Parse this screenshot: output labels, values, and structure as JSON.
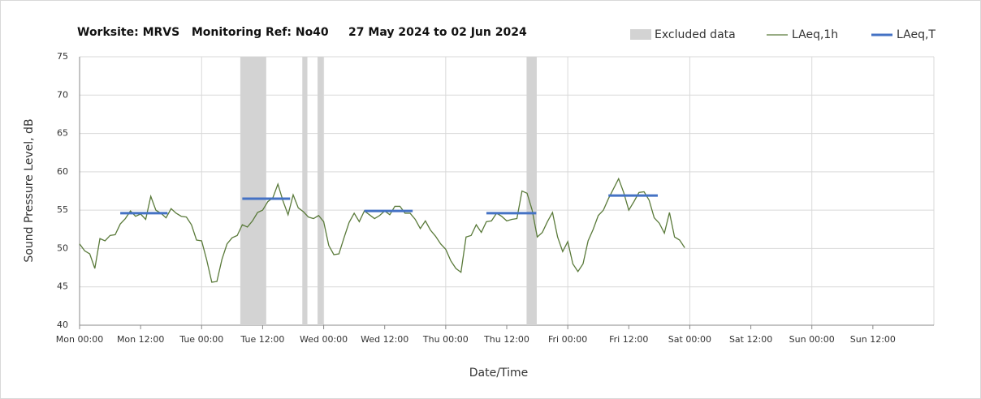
{
  "chart_data": {
    "type": "line",
    "title": "Worksite: MRVS   Monitoring Ref: No40     27 May 2024 to 02 Jun 2024",
    "xlabel": "Date/Time",
    "ylabel": "Sound Pressure Level, dB",
    "xlim": [
      0,
      168
    ],
    "xticks": [
      {
        "value": 0,
        "label": "Mon 00:00"
      },
      {
        "value": 12,
        "label": "Mon 12:00"
      },
      {
        "value": 24,
        "label": "Tue 00:00"
      },
      {
        "value": 36,
        "label": "Tue 12:00"
      },
      {
        "value": 48,
        "label": "Wed 00:00"
      },
      {
        "value": 60,
        "label": "Wed 12:00"
      },
      {
        "value": 72,
        "label": "Thu 00:00"
      },
      {
        "value": 84,
        "label": "Thu 12:00"
      },
      {
        "value": 96,
        "label": "Fri 00:00"
      },
      {
        "value": 108,
        "label": "Fri 12:00"
      },
      {
        "value": 120,
        "label": "Sat 00:00"
      },
      {
        "value": 132,
        "label": "Sat 12:00"
      },
      {
        "value": 144,
        "label": "Sun 00:00"
      },
      {
        "value": 156,
        "label": "Sun 12:00"
      }
    ],
    "ylim": [
      40,
      75
    ],
    "yticks": [
      40,
      45,
      50,
      55,
      60,
      65,
      70,
      75
    ],
    "grid": true,
    "legend": "top-right",
    "excluded": {
      "name": "Excluded data",
      "color": "#d3d3d3",
      "starts": [
        31.6,
        43.8,
        46.8,
        87.9
      ],
      "ends": [
        36.7,
        44.8,
        47.9,
        89.9
      ]
    },
    "x": [
      0,
      1,
      2,
      3,
      4,
      5,
      6,
      7,
      8,
      9,
      10,
      11,
      12,
      13,
      14,
      15,
      16,
      17,
      18,
      19,
      20,
      21,
      22,
      23,
      24,
      25,
      26,
      27,
      28,
      29,
      30,
      31,
      32,
      33,
      34,
      35,
      36,
      37,
      38,
      39,
      40,
      41,
      42,
      43,
      44,
      45,
      46,
      47,
      48,
      49,
      50,
      51,
      52,
      53,
      54,
      55,
      56,
      57,
      58,
      59,
      60,
      61,
      62,
      63,
      64,
      65,
      66,
      67,
      68,
      69,
      70,
      71,
      72,
      73,
      74,
      75,
      76,
      77,
      78,
      79,
      80,
      81,
      82,
      83,
      84,
      85,
      86,
      87,
      88,
      89,
      90,
      91,
      92,
      93,
      94,
      95,
      96,
      97,
      98,
      99,
      100,
      101,
      102,
      103,
      104,
      105,
      106,
      107,
      108,
      109,
      110,
      111,
      112,
      113,
      114,
      115,
      116,
      117,
      118,
      119
    ],
    "series": [
      {
        "name": "LAeq,1h",
        "color": "#5a7a3a",
        "values": [
          50.6,
          49.7,
          49.3,
          47.4,
          51.3,
          51.0,
          51.7,
          51.8,
          53.2,
          53.9,
          54.9,
          54.2,
          54.5,
          53.8,
          56.8,
          55.0,
          54.6,
          54.0,
          55.2,
          54.6,
          54.2,
          54.1,
          53.1,
          51.1,
          51.0,
          48.5,
          45.6,
          45.7,
          48.6,
          50.6,
          51.4,
          51.7,
          53.1,
          52.8,
          53.6,
          54.7,
          55.0,
          56.1,
          56.6,
          58.4,
          56.2,
          54.4,
          57.0,
          55.3,
          54.8,
          54.1,
          53.9,
          54.3,
          53.5,
          50.4,
          49.2,
          49.3,
          51.4,
          53.4,
          54.6,
          53.5,
          54.9,
          54.4,
          53.9,
          54.3,
          54.9,
          54.4,
          55.5,
          55.5,
          54.6,
          54.6,
          53.8,
          52.6,
          53.6,
          52.4,
          51.6,
          50.6,
          49.9,
          48.4,
          47.4,
          46.9,
          51.5,
          51.7,
          53.1,
          52.1,
          53.5,
          53.6,
          54.6,
          54.2,
          53.6,
          53.8,
          53.9,
          57.5,
          57.2,
          55.0,
          51.5,
          52.1,
          53.5,
          54.7,
          51.5,
          49.6,
          50.9,
          48.0,
          47.0,
          48.0,
          51.0,
          52.5,
          54.3,
          55.0,
          56.5,
          57.8,
          59.1,
          57.3,
          55.0,
          56.1,
          57.3,
          57.4,
          56.3,
          54.0,
          53.3,
          52.0,
          54.7,
          51.5,
          51.1,
          50.1
        ]
      }
    ],
    "periods": {
      "name": "LAeq,T",
      "color": "#4472c4",
      "starts": [
        8,
        32,
        56,
        80,
        104
      ],
      "ends": [
        17.3,
        41.4,
        65.5,
        89.8,
        113.7
      ],
      "values": [
        54.6,
        56.5,
        54.9,
        54.6,
        56.9
      ]
    }
  }
}
